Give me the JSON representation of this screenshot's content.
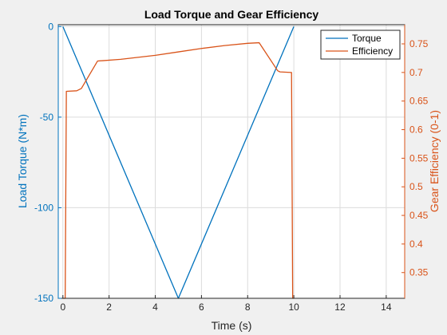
{
  "chart_data": {
    "type": "line",
    "title": "Load Torque and Gear Efficiency",
    "xlabel": "Time (s)",
    "ylabel_left": "Load Torque (N*m)",
    "ylabel_right": "Gear Efficiency (0-1)",
    "xlim": [
      -0.2,
      14.8
    ],
    "ylim_left": [
      -150,
      1
    ],
    "ylim_right": [
      0.305,
      0.7835
    ],
    "x_ticks": [
      0,
      2,
      4,
      6,
      8,
      10,
      12,
      14
    ],
    "y_left_ticks": [
      0,
      -50,
      -100,
      -150
    ],
    "y_right_ticks": [
      0.35,
      0.4,
      0.45,
      0.5,
      0.55,
      0.6,
      0.65,
      0.7,
      0.75
    ],
    "grid": true,
    "legend_position": "top-right",
    "colors": {
      "torque": "#0072BD",
      "efficiency": "#D95319",
      "grid": "#dcdcdc",
      "axes": "#262626"
    },
    "series": [
      {
        "name": "Torque",
        "axis": "left",
        "x": [
          0,
          5,
          10
        ],
        "y": [
          0,
          -150,
          0
        ]
      },
      {
        "name": "Efficiency",
        "axis": "right",
        "x": [
          0,
          0.1,
          0.15,
          0.6,
          0.8,
          1.5,
          2.5,
          4,
          5,
          6,
          7,
          8,
          8.5,
          9.3,
          9.4,
          9.9,
          9.95,
          10
        ],
        "y": [
          0.305,
          0.305,
          0.667,
          0.668,
          0.672,
          0.72,
          0.723,
          0.73,
          0.736,
          0.742,
          0.747,
          0.751,
          0.752,
          0.703,
          0.701,
          0.7,
          0.305,
          0.305
        ]
      }
    ]
  }
}
